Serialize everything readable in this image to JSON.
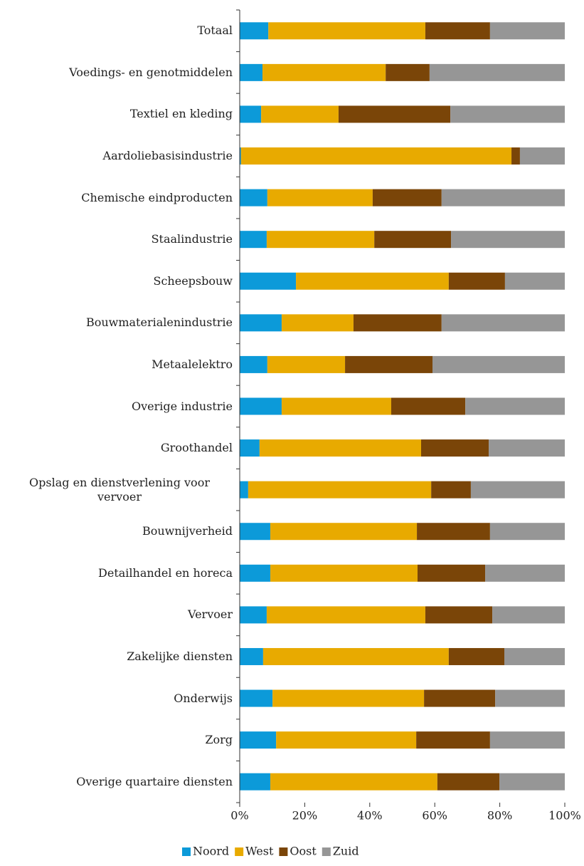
{
  "chart_data": {
    "type": "stacked_barh",
    "categories": [
      "Totaal",
      "Voedings- en genotmiddelen",
      "Textiel en kleding",
      "Aardoliebasisindustrie",
      "Chemische eindproducten",
      "Staalindustrie",
      "Scheepsbouw",
      "Bouwmaterialenindustrie",
      "Metaalelektro",
      "Overige industrie",
      "Groothandel",
      "Opslag en dienstverlening voor vervoer",
      "Bouwnijverheid",
      "Detailhandel en horeca",
      "Vervoer",
      "Zakelijke diensten",
      "Onderwijs",
      "Zorg",
      "Overige quartaire diensten"
    ],
    "series": [
      {
        "name": "Noord",
        "color": "#0c9ad9",
        "values": [
          8.8,
          7.0,
          6.6,
          0.4,
          8.5,
          8.3,
          17.3,
          12.9,
          8.5,
          12.9,
          6.1,
          2.6,
          9.4,
          9.4,
          8.3,
          7.2,
          10.1,
          11.2,
          9.4
        ]
      },
      {
        "name": "West",
        "color": "#e8aa00",
        "values": [
          48.3,
          37.9,
          23.8,
          83.2,
          32.4,
          33.1,
          47.0,
          22.1,
          23.9,
          33.7,
          49.7,
          56.3,
          45.1,
          45.3,
          48.8,
          57.1,
          46.6,
          43.1,
          51.4
        ]
      },
      {
        "name": "Oost",
        "color": "#7a4508",
        "values": [
          19.9,
          13.5,
          34.4,
          2.6,
          21.2,
          23.6,
          17.3,
          27.1,
          26.9,
          22.8,
          20.8,
          12.2,
          22.5,
          20.8,
          20.6,
          17.1,
          21.9,
          22.7,
          19.1
        ]
      },
      {
        "name": "Zuid",
        "color": "#969696",
        "values": [
          23.0,
          41.6,
          35.2,
          13.8,
          37.9,
          35.0,
          18.4,
          37.9,
          40.7,
          30.6,
          23.4,
          28.9,
          23.0,
          24.5,
          22.3,
          18.6,
          21.4,
          23.0,
          20.1
        ]
      }
    ],
    "xlim": [
      0,
      100
    ],
    "xticks": [
      {
        "value": 0,
        "label": "0%"
      },
      {
        "value": 20,
        "label": "20%"
      },
      {
        "value": 40,
        "label": "40%"
      },
      {
        "value": 60,
        "label": "60%"
      },
      {
        "value": 80,
        "label": "80%"
      },
      {
        "value": 100,
        "label": "100%"
      }
    ],
    "legend": "bottom"
  }
}
